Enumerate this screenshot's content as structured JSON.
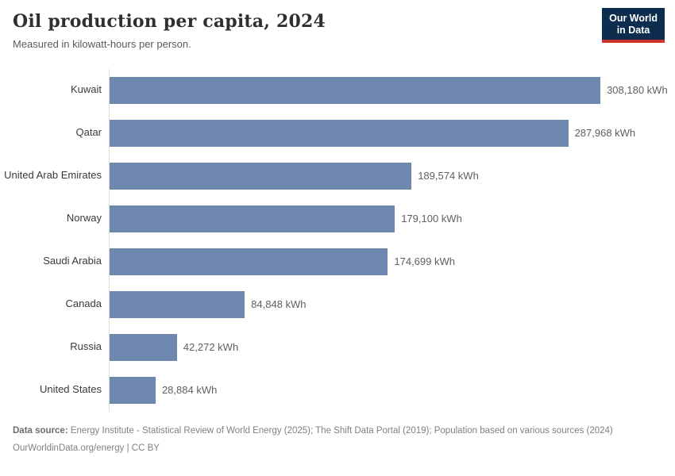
{
  "header": {
    "title": "Oil production per capita, 2024",
    "subtitle": "Measured in kilowatt-hours per person.",
    "logo_line1": "Our World",
    "logo_line2": "in Data"
  },
  "chart_data": {
    "type": "bar",
    "orientation": "horizontal",
    "title": "Oil production per capita, 2024",
    "unit": "kilowatt-hours per person",
    "categories": [
      "Kuwait",
      "Qatar",
      "United Arab Emirates",
      "Norway",
      "Saudi Arabia",
      "Canada",
      "Russia",
      "United States"
    ],
    "values": [
      308180,
      287968,
      189574,
      179100,
      174699,
      84848,
      42272,
      28884
    ],
    "value_labels": [
      "308,180 kWh",
      "287,968 kWh",
      "189,574 kWh",
      "179,100 kWh",
      "174,699 kWh",
      "84,848 kWh",
      "42,272 kWh",
      "28,884 kWh"
    ],
    "xlim": [
      0,
      355000
    ],
    "grid": false,
    "legend": "none",
    "bar_color": "#6e87af"
  },
  "footer": {
    "source_label": "Data source:",
    "source_text": " Energy Institute - Statistical Review of World Energy (2025); The Shift Data Portal (2019); Population based on various sources (2024)",
    "citation": "OurWorldinData.org/energy | CC BY"
  },
  "colors": {
    "bar": "#6e87af",
    "axis_line": "#d9d9d9",
    "logo_background": "#0d2d4e",
    "logo_accent": "#cc342c"
  }
}
